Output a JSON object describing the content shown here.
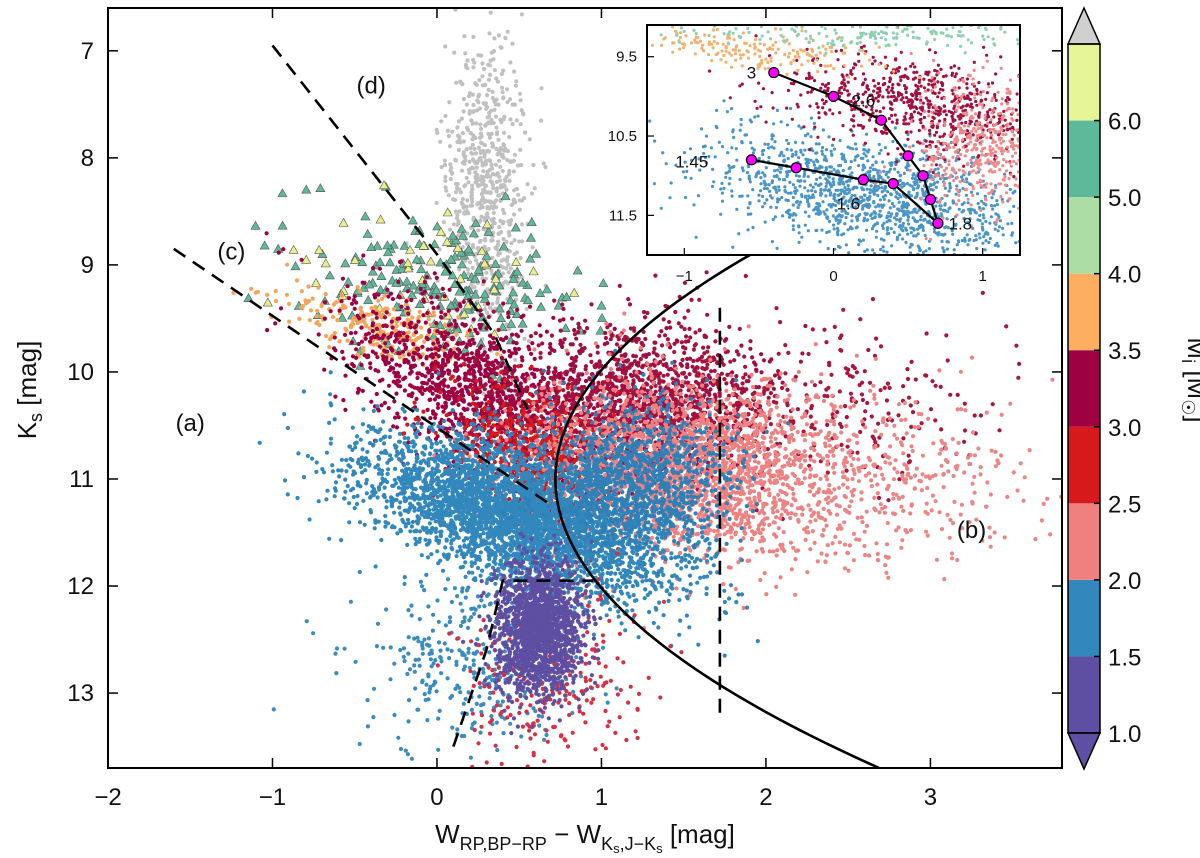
{
  "chart_data": {
    "type": "scatter",
    "main": {
      "xlabel_main": "W",
      "xlabel_sub1": "RP,BP−RP",
      "xlabel_mid": " − W",
      "xlabel_sub2": "K",
      "xlabel_sub2b": "s",
      "xlabel_sub2c": ",J−K",
      "xlabel_sub2d": "s",
      "xlabel_unit": "  [mag]",
      "ylabel_main": "K",
      "ylabel_sub": "s",
      "ylabel_unit": "  [mag]",
      "xlim": [
        -2,
        3.8
      ],
      "ylim": [
        13.7,
        6.6
      ],
      "xticks": [
        -2,
        -1,
        0,
        1,
        2,
        3
      ],
      "xtick_labels": [
        "−2",
        "−1",
        "0",
        "1",
        "2",
        "3"
      ],
      "yticks": [
        7,
        8,
        9,
        10,
        11,
        12,
        13
      ],
      "ytick_labels": [
        "7",
        "8",
        "9",
        "10",
        "11",
        "12",
        "13"
      ],
      "region_labels": [
        {
          "text": "(a)",
          "x": -1.5,
          "y": 10.55
        },
        {
          "text": "(b)",
          "x": 3.25,
          "y": 11.55
        },
        {
          "text": "(c)",
          "x": -1.25,
          "y": 8.95
        },
        {
          "text": "(d)",
          "x": -0.4,
          "y": 7.4
        }
      ],
      "dashed_lines": [
        [
          [
            -1.6,
            8.85
          ],
          [
            0.7,
            11.25
          ]
        ],
        [
          [
            -1.0,
            6.95
          ],
          [
            0.0,
            8.9
          ],
          [
            0.35,
            9.65
          ],
          [
            0.55,
            10.35
          ]
        ],
        [
          [
            0.1,
            13.5
          ],
          [
            0.3,
            12.6
          ],
          [
            0.4,
            11.95
          ],
          [
            0.95,
            11.95
          ]
        ],
        [
          [
            1.72,
            9.4
          ],
          [
            1.72,
            13.2
          ]
        ]
      ],
      "boundary_curve": {
        "vertex_x": 0.72,
        "vertex_y": 11.0,
        "a": 0.27,
        "y_from": 8.55,
        "y_to": 13.7
      },
      "populations": [
        {
          "name": "gray",
          "color": "#c0c0c0",
          "n": 700,
          "cx": 0.3,
          "cy": 8.3,
          "sx": 0.12,
          "sy": 0.75,
          "tilt": -0.3
        },
        {
          "name": "tri-green",
          "color": "#5db99a",
          "n": 200,
          "cx": 0.0,
          "cy": 9.2,
          "sx": 0.45,
          "sy": 0.35,
          "tilt": 0.2,
          "shape": "triangle"
        },
        {
          "name": "tri-yellow",
          "color": "#e8ef8a",
          "n": 45,
          "cx": 0.0,
          "cy": 9.1,
          "sx": 0.45,
          "sy": 0.35,
          "tilt": 0.2,
          "shape": "triangle"
        },
        {
          "name": "orange",
          "color": "#f5a55a",
          "n": 260,
          "cx": -0.3,
          "cy": 9.6,
          "sx": 0.3,
          "sy": 0.15,
          "tilt": 0.4
        },
        {
          "name": "darkred",
          "color": "#9e0142",
          "n": 1300,
          "cx": 0.25,
          "cy": 10.15,
          "sx": 0.4,
          "sy": 0.35,
          "tilt": 0.55
        },
        {
          "name": "darkred-clump",
          "color": "#a3103f",
          "n": 1600,
          "cx": 1.25,
          "cy": 10.3,
          "sx": 0.38,
          "sy": 0.35,
          "tilt": 0.0
        },
        {
          "name": "darkred-tail",
          "color": "#a8163c",
          "n": 300,
          "cx": 2.2,
          "cy": 10.3,
          "sx": 0.7,
          "sy": 0.35,
          "tilt": 0.0
        },
        {
          "name": "red",
          "color": "#d7191c",
          "n": 700,
          "cx": 0.6,
          "cy": 10.8,
          "sx": 0.25,
          "sy": 0.3,
          "tilt": 0.4
        },
        {
          "name": "salmon",
          "color": "#f08080",
          "n": 2200,
          "cx": 1.45,
          "cy": 10.9,
          "sx": 0.45,
          "sy": 0.4,
          "tilt": 0.1
        },
        {
          "name": "salmon-tail",
          "color": "#ec8686",
          "n": 500,
          "cx": 2.6,
          "cy": 11.0,
          "sx": 0.55,
          "sy": 0.4,
          "tilt": 0.0
        },
        {
          "name": "blue",
          "color": "#3288bd",
          "n": 3800,
          "cx": 0.5,
          "cy": 11.35,
          "sx": 0.45,
          "sy": 0.3,
          "tilt": 0.45
        },
        {
          "name": "blue-clump",
          "color": "#2f80b7",
          "n": 1200,
          "cx": 1.2,
          "cy": 11.0,
          "sx": 0.3,
          "sy": 0.35,
          "tilt": 0.0
        },
        {
          "name": "blue-low",
          "color": "#3a8cc0",
          "n": 350,
          "cx": 0.25,
          "cy": 12.7,
          "sx": 0.35,
          "sy": 0.45,
          "tilt": 0.0
        },
        {
          "name": "red-low",
          "color": "#d73045",
          "n": 250,
          "cx": 0.7,
          "cy": 12.9,
          "sx": 0.3,
          "sy": 0.4,
          "tilt": 0.0
        },
        {
          "name": "purple",
          "color": "#5e4fa2",
          "n": 1700,
          "cx": 0.62,
          "cy": 12.4,
          "sx": 0.13,
          "sy": 0.3,
          "tilt": 0.0
        }
      ]
    },
    "inset": {
      "xlim": [
        -1.25,
        1.25
      ],
      "ylim": [
        12.0,
        9.1
      ],
      "xticks": [
        -1,
        0,
        1
      ],
      "xtick_labels": [
        "−1",
        "0",
        "1"
      ],
      "yticks": [
        9.5,
        10.5,
        11.5
      ],
      "ytick_labels": [
        "9.5",
        "10.5",
        "11.5"
      ],
      "track_color": "#ff00ff",
      "track_upper": [
        [
          -0.4,
          9.7
        ],
        [
          0.0,
          10.0
        ],
        [
          0.32,
          10.3
        ],
        [
          0.5,
          10.75
        ],
        [
          0.6,
          11.0
        ],
        [
          0.65,
          11.3
        ],
        [
          0.7,
          11.6
        ]
      ],
      "track_lower": [
        [
          -0.55,
          10.8
        ],
        [
          -0.25,
          10.9
        ],
        [
          0.2,
          11.05
        ],
        [
          0.4,
          11.1
        ],
        [
          0.7,
          11.6
        ]
      ],
      "mass_labels": [
        {
          "text": "3",
          "x": -0.55,
          "y": 9.7
        },
        {
          "text": "2.6",
          "x": 0.2,
          "y": 10.05
        },
        {
          "text": "1.45",
          "x": -0.95,
          "y": 10.82
        },
        {
          "text": "1.6",
          "x": 0.1,
          "y": 11.35
        },
        {
          "text": "1.8",
          "x": 0.85,
          "y": 11.6
        }
      ],
      "populations": [
        {
          "name": "inset-blue",
          "color": "#4a95c8",
          "n": 1400,
          "cx": 0.25,
          "cy": 11.25,
          "sx": 0.55,
          "sy": 0.35,
          "tilt": 0.35
        },
        {
          "name": "inset-darkred",
          "color": "#a3103f",
          "n": 700,
          "cx": 0.55,
          "cy": 10.1,
          "sx": 0.45,
          "sy": 0.3,
          "tilt": 0.3
        },
        {
          "name": "inset-salmon",
          "color": "#f08a8a",
          "n": 500,
          "cx": 1.05,
          "cy": 10.6,
          "sx": 0.25,
          "sy": 0.45,
          "tilt": 0.0
        },
        {
          "name": "inset-orange",
          "color": "#f5b070",
          "n": 180,
          "cx": -0.5,
          "cy": 9.4,
          "sx": 0.4,
          "sy": 0.12,
          "tilt": 0.2
        },
        {
          "name": "inset-green",
          "color": "#8fd0b0",
          "n": 200,
          "cx": 0.3,
          "cy": 9.2,
          "sx": 0.6,
          "sy": 0.1,
          "tilt": 0.0
        }
      ]
    },
    "colorbar": {
      "label_main": "M",
      "label_sub": "i",
      "label_unit": " [M",
      "label_unit_end": "]",
      "ticks": [
        "1.0",
        "1.5",
        "2.0",
        "2.5",
        "3.0",
        "3.5",
        "4.0",
        "5.0",
        "6.0"
      ],
      "colors": [
        "#5e4fa2",
        "#3288bd",
        "#f08080",
        "#d7191c",
        "#9e0142",
        "#fdae61",
        "#abdda4",
        "#5db99a",
        "#e6f598"
      ],
      "over_color": "#d0d0d0",
      "under_color": "#5e4fa2"
    }
  }
}
